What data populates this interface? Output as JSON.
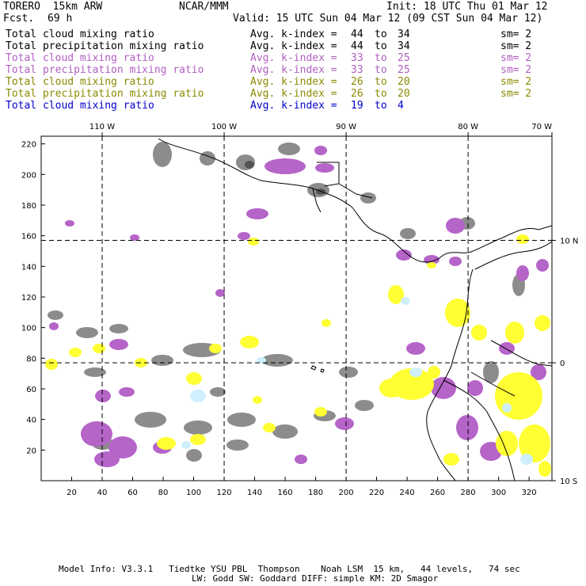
{
  "header": {
    "model": "TORERO  15km ARW",
    "center": "NCAR/MMM",
    "init": "Init: 18 UTC Thu 01 Mar 12",
    "fcst_label": "Fcst.",
    "fcst_value": "69 h",
    "valid": "Valid: 15 UTC Sun 04 Mar 12 (09 CST Sun 04 Mar 12)"
  },
  "legend": [
    {
      "name": "Total cloud mixing ratio",
      "k_label": "Avg. k-index =",
      "k_from": "44",
      "to": "to",
      "k_to": "34",
      "sm": "sm= 2",
      "color": "#000000"
    },
    {
      "name": "Total precipitation mixing ratio",
      "k_label": "Avg. k-index =",
      "k_from": "44",
      "to": "to",
      "k_to": "34",
      "sm": "sm= 2",
      "color": "#000000"
    },
    {
      "name": "Total cloud mixing ratio",
      "k_label": "Avg. k-index =",
      "k_from": "33",
      "to": "to",
      "k_to": "25",
      "sm": "sm= 2",
      "color": "#b05fc0"
    },
    {
      "name": "Total precipitation mixing ratio",
      "k_label": "Avg. k-index =",
      "k_from": "33",
      "to": "to",
      "k_to": "25",
      "sm": "sm= 2",
      "color": "#b05fc0"
    },
    {
      "name": "Total cloud mixing ratio",
      "k_label": "Avg. k-index =",
      "k_from": "26",
      "to": "to",
      "k_to": "20",
      "sm": "sm= 2",
      "color": "#8a8a00"
    },
    {
      "name": "Total precipitation mixing ratio",
      "k_label": "Avg. k-index =",
      "k_from": "26",
      "to": "to",
      "k_to": "20",
      "sm": "sm= 2",
      "color": "#8a8a00"
    },
    {
      "name": "Total cloud mixing ratio",
      "k_label": "Avg. k-index =",
      "k_from": "19",
      "to": "to",
      "k_to": "4",
      "sm": "",
      "color": "#0000cc"
    }
  ],
  "map": {
    "lon_labels": [
      "110 W",
      "100 W",
      "90 W",
      "80 W",
      "70 W"
    ],
    "lat_labels": [
      "10 N",
      "0",
      "10 S"
    ],
    "x_ticks": [
      "20",
      "40",
      "60",
      "80",
      "100",
      "120",
      "140",
      "160",
      "180",
      "200",
      "220",
      "240",
      "260",
      "280",
      "300",
      "320"
    ],
    "y_ticks": [
      "20",
      "40",
      "60",
      "80",
      "100",
      "120",
      "140",
      "160",
      "180",
      "200",
      "220"
    ],
    "x_range": [
      0,
      335
    ],
    "y_range": [
      0,
      225
    ],
    "lon_lines_grid_x": [
      40,
      120,
      200,
      280
    ],
    "lat_lines_grid_y": [
      77,
      157
    ],
    "colors": {
      "gray": "#8c8c8c",
      "dark_gray": "#555555",
      "violet": "#b564c8",
      "yellow": "#ffff33",
      "light_cyan": "#cfefff"
    }
  },
  "footer": {
    "line1": "Model Info: V3.3.1   Tiedtke YSU PBL  Thompson    Noah LSM  15 km,   44 levels,   74 sec",
    "line2": "LW: Godd SW: Goddard DIFF: simple KM: 2D Smagor"
  }
}
